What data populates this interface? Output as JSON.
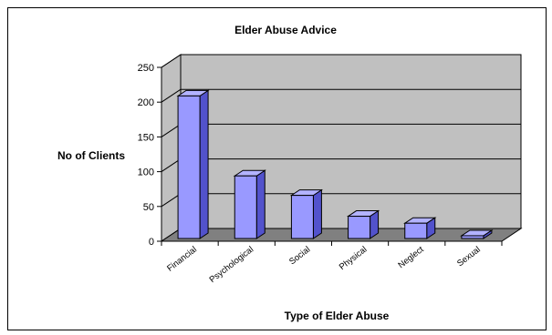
{
  "chart_data": {
    "type": "bar",
    "title": "Elder Abuse Advice",
    "xlabel": "Type of Elder Abuse",
    "ylabel": "No of Clients",
    "categories": [
      "Financial",
      "Psychological",
      "Social",
      "Physical",
      "Neglect",
      "Sexual"
    ],
    "values": [
      205,
      90,
      62,
      32,
      22,
      4
    ],
    "ylim": [
      0,
      250
    ],
    "yticks": [
      0,
      50,
      100,
      150,
      200,
      250
    ],
    "grid": true,
    "legend": "none",
    "three_d": true,
    "colors": {
      "bar_front": "#9999ff",
      "bar_top": "#b3b3ff",
      "bar_side": "#5252cc",
      "wall": "#c0c0c0",
      "floor": "#808080",
      "frame": "#000000"
    }
  }
}
